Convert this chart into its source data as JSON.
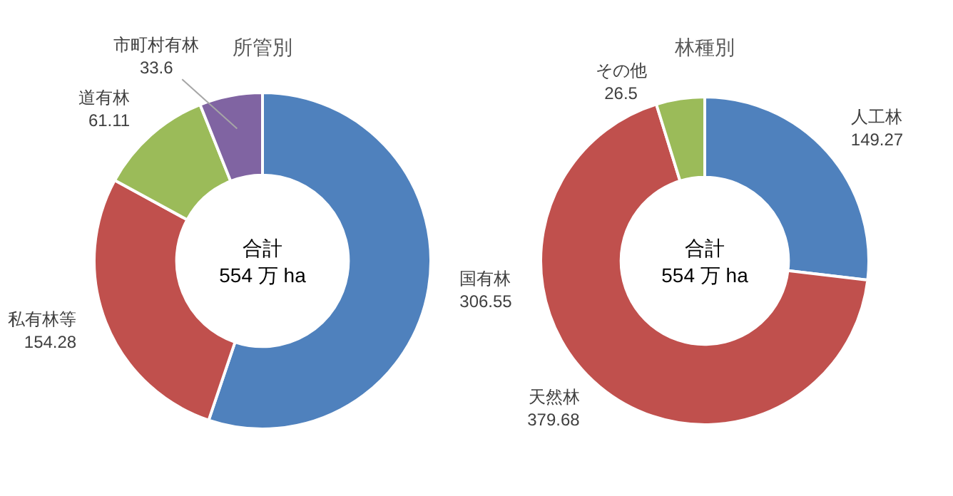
{
  "chart_data": [
    {
      "type": "donut",
      "title": "所管別",
      "categories": [
        "国有林",
        "私有林等",
        "道有林",
        "市町村有林"
      ],
      "values": [
        306.55,
        154.28,
        61.11,
        33.6
      ],
      "colors": [
        "#4f81bd",
        "#c0504d",
        "#9bbb59",
        "#8064a2"
      ],
      "data_labels": true,
      "annotations": [
        "合計",
        "554 万 ha"
      ]
    },
    {
      "type": "donut",
      "title": "林種別",
      "categories": [
        "人工林",
        "天然林",
        "その他"
      ],
      "values": [
        149.27,
        379.68,
        26.5
      ],
      "colors": [
        "#4f81bd",
        "#c0504d",
        "#9bbb59"
      ],
      "data_labels": true,
      "annotations": [
        "合計",
        "554 万 ha"
      ]
    }
  ]
}
